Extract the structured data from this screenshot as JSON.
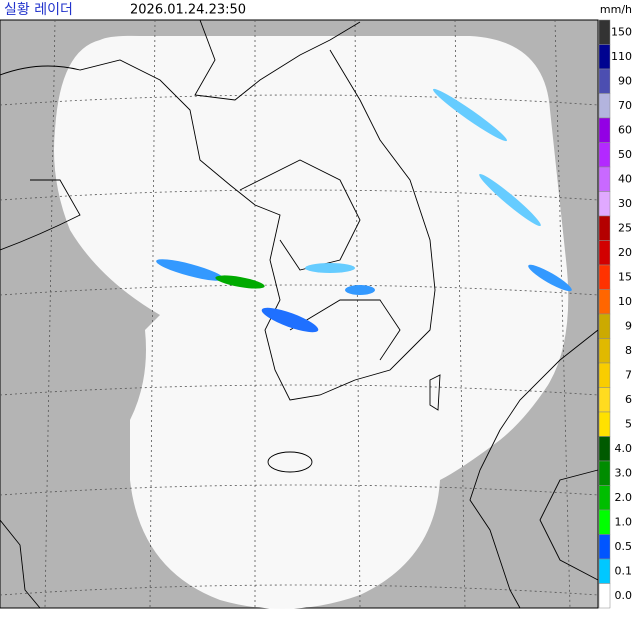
{
  "header": {
    "title": "실황 레이더",
    "time": "2026.01.24.23:50"
  },
  "legend": {
    "unit": "mm/h",
    "items": [
      {
        "label": "150",
        "color": "#333333"
      },
      {
        "label": "110",
        "color": "#000390"
      },
      {
        "label": "90",
        "color": "#4c4eb1"
      },
      {
        "label": "70",
        "color": "#b3b4de"
      },
      {
        "label": "60",
        "color": "#9300e4"
      },
      {
        "label": "50",
        "color": "#b329ff"
      },
      {
        "label": "40",
        "color": "#c969ff"
      },
      {
        "label": "30",
        "color": "#e0a9ff"
      },
      {
        "label": "25",
        "color": "#b40000"
      },
      {
        "label": "20",
        "color": "#d20000"
      },
      {
        "label": "15",
        "color": "#ff3200"
      },
      {
        "label": "10",
        "color": "#ff6600"
      },
      {
        "label": "9",
        "color": "#ccaa00"
      },
      {
        "label": "8",
        "color": "#e0b900"
      },
      {
        "label": "7",
        "color": "#f9cd00"
      },
      {
        "label": "6",
        "color": "#ffdc1f"
      },
      {
        "label": "5",
        "color": "#ffe100"
      },
      {
        "label": "4.0",
        "color": "#005a00"
      },
      {
        "label": "3.0",
        "color": "#008c00"
      },
      {
        "label": "2.0",
        "color": "#00be00"
      },
      {
        "label": "1.0",
        "color": "#00ff00"
      },
      {
        "label": "0.5",
        "color": "#0055ff"
      },
      {
        "label": "0.1",
        "color": "#00c8ff"
      },
      {
        "label": "0.0",
        "color": "#ffffff"
      }
    ]
  }
}
